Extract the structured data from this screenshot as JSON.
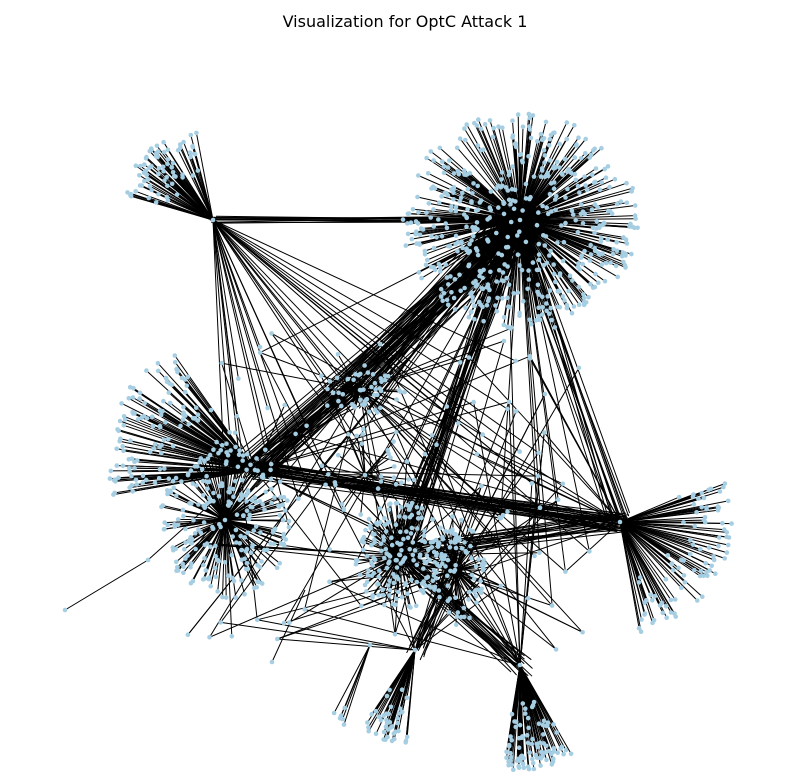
{
  "title": "Visualization for OptC Attack 1",
  "colors": {
    "background": "#ffffff",
    "node_fill": "#a6cee3",
    "edge": "#000000",
    "title_text": "#000000"
  },
  "graph": {
    "type": "network",
    "layout": "force-directed",
    "axes_visible": false
  }
}
